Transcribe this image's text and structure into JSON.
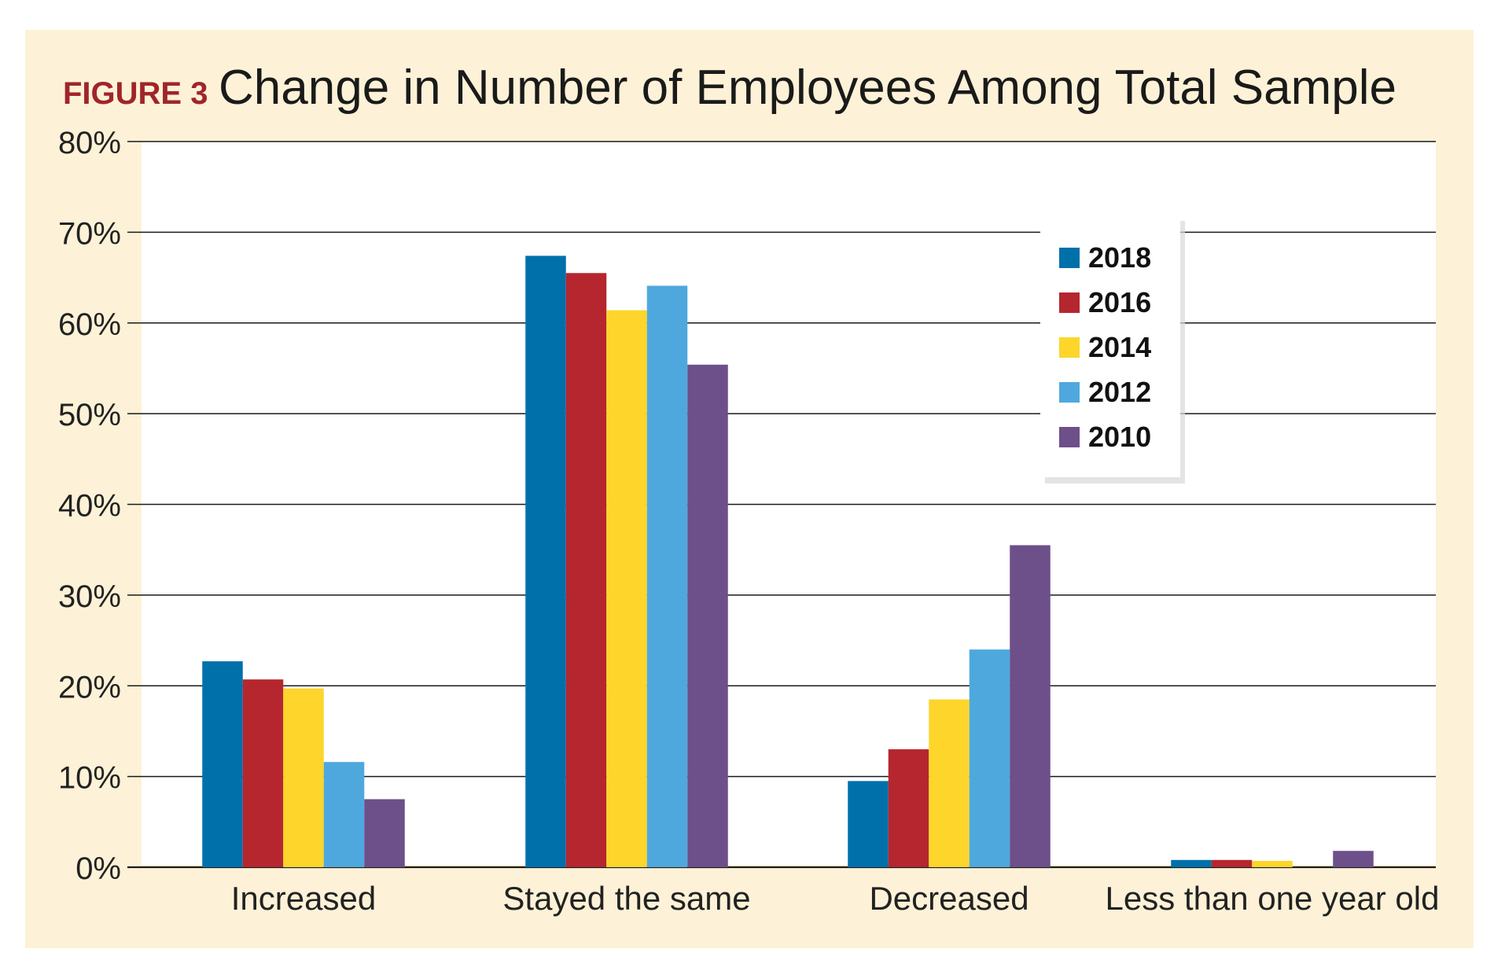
{
  "figure_label": "FIGURE 3",
  "colors": {
    "panel_background": "#fdf2d7",
    "plot_background": "#ffffff",
    "gridline": "#1a1a1a",
    "label_accent": "#a0252a"
  },
  "chart_data": {
    "type": "bar",
    "title": "Change in Number of Employees Among Total Sample",
    "xlabel": "",
    "ylabel": "",
    "ylim": [
      0,
      80
    ],
    "yticks": [
      0,
      10,
      20,
      30,
      40,
      50,
      60,
      70,
      80
    ],
    "ytick_labels": [
      "0%",
      "10%",
      "20%",
      "30%",
      "40%",
      "50%",
      "60%",
      "70%",
      "80%"
    ],
    "grid": true,
    "legend_position": "top-right",
    "categories": [
      "Increased",
      "Stayed the same",
      "Decreased",
      "Less than one year old"
    ],
    "series": [
      {
        "name": "2018",
        "color": "#0070ab",
        "values": [
          22.7,
          67.4,
          9.5,
          0.8
        ]
      },
      {
        "name": "2016",
        "color": "#b5262e",
        "values": [
          20.7,
          65.5,
          13.0,
          0.8
        ]
      },
      {
        "name": "2014",
        "color": "#fdd52b",
        "values": [
          19.7,
          61.4,
          18.5,
          0.7
        ]
      },
      {
        "name": "2012",
        "color": "#4fa8dd",
        "values": [
          11.6,
          64.1,
          24.0,
          0.0
        ]
      },
      {
        "name": "2010",
        "color": "#6d4f8a",
        "values": [
          7.5,
          55.4,
          35.5,
          1.8
        ]
      }
    ]
  }
}
